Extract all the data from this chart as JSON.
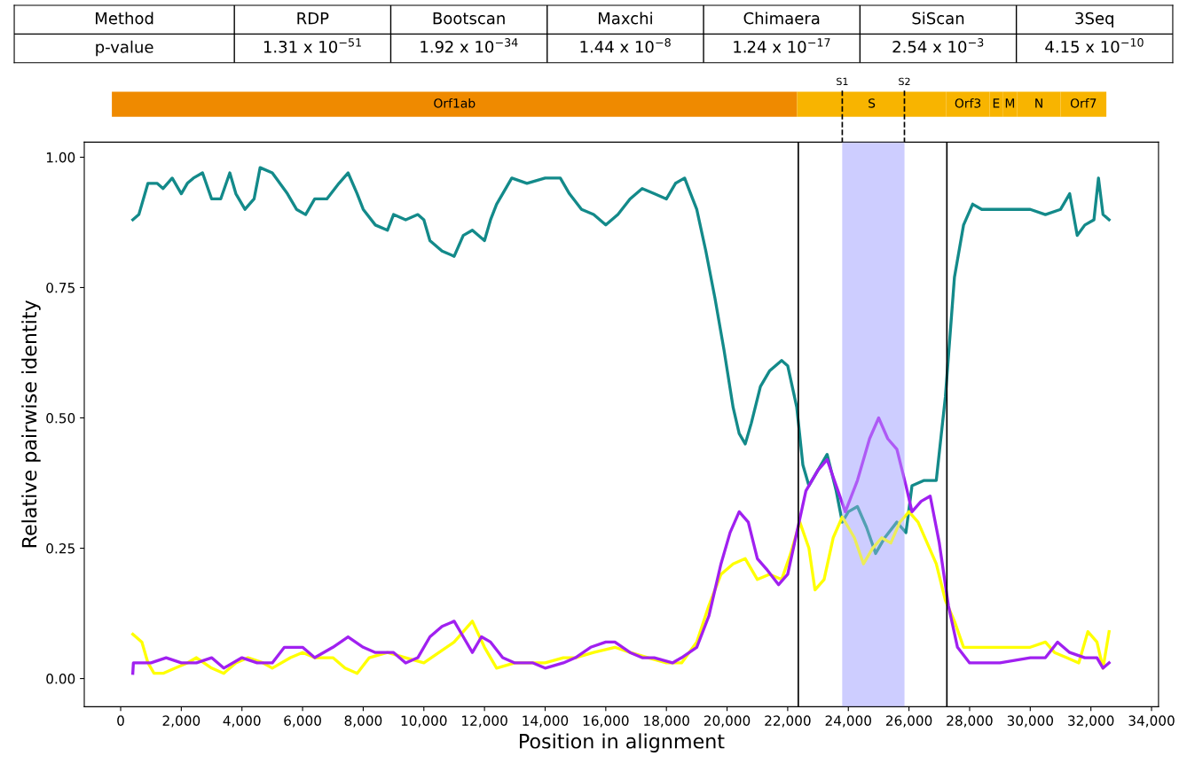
{
  "chart_data": [
    {
      "type": "other",
      "annotations": [
        "Method",
        "RDP",
        "Bootscan",
        "Maxchi",
        "Chimaera",
        "SiScan",
        "3Seq",
        "p-value",
        "1.31 x 10$^{−51}$",
        "1.92 x 10$^{−34}$",
        "1.44 x 10$^{−8}$",
        "1.24 x 10$^{−17}$",
        "2.54 x 10$^{−3}$",
        "4.15 x 10$^{−10}$"
      ]
    },
    {
      "type": "bar",
      "orientation": "horizontal",
      "categories": [
        null
      ],
      "xlim": [
        -1200,
        34230
      ],
      "tick_labels": false,
      "series": [
        {
          "name": "Orf1ab",
          "color": "#ef8a00",
          "base": [
            -290
          ],
          "values": [
            22600
          ]
        },
        {
          "name": "S",
          "color": "#f8b400",
          "base": [
            22310
          ],
          "values": [
            4920
          ]
        },
        {
          "name": "Orf3",
          "color": "#f8b400",
          "base": [
            27230
          ],
          "values": [
            1430
          ]
        },
        {
          "name": "E",
          "color": "#f8b400",
          "base": [
            28660
          ],
          "values": [
            430
          ]
        },
        {
          "name": "M",
          "color": "#f8b400",
          "base": [
            29090
          ],
          "values": [
            480
          ]
        },
        {
          "name": "N",
          "color": "#f8b400",
          "base": [
            29570
          ],
          "values": [
            1430
          ]
        },
        {
          "name": "Orf7",
          "color": "#f8b400",
          "base": [
            31000
          ],
          "values": [
            1510
          ]
        }
      ],
      "ref_lines": [
        {
          "axis": "x",
          "value": 23800,
          "label": "S1",
          "color": "#000000",
          "line_style": "dashed"
        },
        {
          "axis": "x",
          "value": 25850,
          "label": "S2",
          "color": "#000000",
          "line_style": "dashed"
        }
      ]
    },
    {
      "type": "line",
      "xlabel": "Position in alignment",
      "ylabel": "Relative pairwise identity",
      "xlim": [
        -1200,
        34230
      ],
      "ylim": [
        -0.054,
        1.029
      ],
      "xticks": [
        0,
        {
          "value": 2000,
          "label": "2,000"
        },
        {
          "value": 4000,
          "label": "4,000"
        },
        {
          "value": 6000,
          "label": "6,000"
        },
        {
          "value": 8000,
          "label": "8,000"
        },
        {
          "value": 10000,
          "label": "10,000"
        },
        {
          "value": 12000,
          "label": "12,000"
        },
        {
          "value": 14000,
          "label": "14,000"
        },
        {
          "value": 16000,
          "label": "16,000"
        },
        {
          "value": 18000,
          "label": "18,000"
        },
        {
          "value": 20000,
          "label": "20,000"
        },
        {
          "value": 22000,
          "label": "22,000"
        },
        {
          "value": 24000,
          "label": "24,000"
        },
        {
          "value": 26000,
          "label": "26,000"
        },
        {
          "value": 28000,
          "label": "28,000"
        },
        {
          "value": 30000,
          "label": "30,000"
        },
        {
          "value": 32000,
          "label": "32,000"
        },
        {
          "value": 34000,
          "label": "34,000"
        }
      ],
      "yticks": [
        {
          "value": 0,
          "label": "0.00"
        },
        {
          "value": 0.25,
          "label": "0.25"
        },
        {
          "value": 0.5,
          "label": "0.50"
        },
        {
          "value": 0.75,
          "label": "0.75"
        },
        {
          "value": 1,
          "label": "1.00"
        }
      ],
      "grid": false,
      "legend": false,
      "bands": [
        {
          "axis": "x",
          "from": 23800,
          "to": 25850,
          "color": "#c8c8ff"
        }
      ],
      "ref_lines": [
        {
          "axis": "x",
          "value": 22350,
          "color": "#000000",
          "line_style": "solid"
        },
        {
          "axis": "x",
          "value": 27250,
          "color": "#000000",
          "line_style": "solid"
        }
      ],
      "series": [
        {
          "color": "#138a8a",
          "x": [
            400,
            600,
            900,
            1200,
            1400,
            1700,
            2000,
            2200,
            2400,
            2700,
            3000,
            3300,
            3600,
            3800,
            4100,
            4400,
            4600,
            5000,
            5500,
            5800,
            6100,
            6400,
            6800,
            7200,
            7500,
            7800,
            8000,
            8400,
            8800,
            9000,
            9400,
            9800,
            10000,
            10200,
            10600,
            11000,
            11300,
            11600,
            12000,
            12200,
            12400,
            12900,
            13400,
            14000,
            14500,
            14800,
            15200,
            15600,
            16000,
            16400,
            16800,
            17200,
            17600,
            18000,
            18300,
            18600,
            18800,
            19000,
            19300,
            19600,
            19900,
            20200,
            20400,
            20600,
            20800,
            21100,
            21400,
            21800,
            22000,
            22300,
            22500,
            22700,
            23000,
            23300,
            23600,
            23800,
            24000,
            24300,
            24600,
            24900,
            25200,
            25600,
            25900,
            26100,
            26500,
            26900,
            27200,
            27500,
            27800,
            28100,
            28400,
            29000,
            30000,
            30500,
            31000,
            31300,
            31550,
            31800,
            32100,
            32250,
            32400,
            32600
          ],
          "values": [
            0.88,
            0.89,
            0.95,
            0.95,
            0.94,
            0.96,
            0.93,
            0.95,
            0.96,
            0.97,
            0.92,
            0.92,
            0.97,
            0.93,
            0.9,
            0.92,
            0.98,
            0.97,
            0.93,
            0.9,
            0.89,
            0.92,
            0.92,
            0.95,
            0.97,
            0.93,
            0.9,
            0.87,
            0.86,
            0.89,
            0.88,
            0.89,
            0.88,
            0.84,
            0.82,
            0.81,
            0.85,
            0.86,
            0.84,
            0.88,
            0.91,
            0.96,
            0.95,
            0.96,
            0.96,
            0.93,
            0.9,
            0.89,
            0.87,
            0.89,
            0.92,
            0.94,
            0.93,
            0.92,
            0.95,
            0.96,
            0.93,
            0.9,
            0.82,
            0.73,
            0.63,
            0.52,
            0.47,
            0.45,
            0.49,
            0.56,
            0.59,
            0.61,
            0.6,
            0.52,
            0.41,
            0.37,
            0.4,
            0.43,
            0.36,
            0.3,
            0.32,
            0.33,
            0.29,
            0.24,
            0.27,
            0.3,
            0.28,
            0.37,
            0.38,
            0.38,
            0.54,
            0.77,
            0.87,
            0.91,
            0.9,
            0.9,
            0.9,
            0.89,
            0.9,
            0.93,
            0.85,
            0.87,
            0.88,
            0.96,
            0.89,
            0.88
          ]
        },
        {
          "color": "#ffff00",
          "x": [
            400,
            700,
            900,
            1100,
            1400,
            1800,
            2200,
            2500,
            3000,
            3400,
            3800,
            4200,
            4700,
            5000,
            5600,
            6000,
            6400,
            7000,
            7400,
            7800,
            8200,
            8800,
            9400,
            10000,
            10500,
            11000,
            11600,
            12000,
            12400,
            13000,
            14000,
            14600,
            15000,
            15600,
            16300,
            16800,
            17400,
            18000,
            18500,
            19000,
            19400,
            19800,
            20200,
            20600,
            21000,
            21400,
            21800,
            22100,
            22400,
            22700,
            22900,
            23200,
            23500,
            23800,
            24200,
            24500,
            24800,
            25100,
            25400,
            25700,
            26000,
            26300,
            26600,
            26900,
            27200,
            27500,
            27800,
            28200,
            29000,
            30000,
            30500,
            30800,
            31200,
            31600,
            31900,
            32200,
            32400,
            32600
          ],
          "values": [
            0.085,
            0.07,
            0.03,
            0.01,
            0.01,
            0.02,
            0.03,
            0.04,
            0.02,
            0.01,
            0.03,
            0.04,
            0.03,
            0.02,
            0.04,
            0.05,
            0.04,
            0.04,
            0.02,
            0.01,
            0.04,
            0.05,
            0.04,
            0.03,
            0.05,
            0.07,
            0.11,
            0.06,
            0.02,
            0.03,
            0.03,
            0.04,
            0.04,
            0.05,
            0.06,
            0.05,
            0.04,
            0.03,
            0.03,
            0.07,
            0.14,
            0.2,
            0.22,
            0.23,
            0.19,
            0.2,
            0.19,
            0.24,
            0.3,
            0.25,
            0.17,
            0.19,
            0.27,
            0.31,
            0.27,
            0.22,
            0.25,
            0.27,
            0.26,
            0.3,
            0.32,
            0.3,
            0.26,
            0.22,
            0.15,
            0.11,
            0.06,
            0.06,
            0.06,
            0.06,
            0.07,
            0.05,
            0.04,
            0.03,
            0.09,
            0.07,
            0.02,
            0.09
          ]
        },
        {
          "color": "#a020f0",
          "x": [
            400,
            420,
            1000,
            1500,
            2000,
            2500,
            3000,
            3400,
            4000,
            4500,
            5000,
            5400,
            6000,
            6400,
            7000,
            7500,
            8000,
            8400,
            9000,
            9400,
            9800,
            10200,
            10600,
            11000,
            11300,
            11600,
            11900,
            12200,
            12600,
            13000,
            13600,
            14000,
            14600,
            15000,
            15500,
            16000,
            16300,
            16800,
            17200,
            17600,
            18200,
            18500,
            19000,
            19400,
            19800,
            20100,
            20400,
            20700,
            21000,
            21300,
            21700,
            22000,
            22300,
            22600,
            23000,
            23300,
            23600,
            23900,
            24300,
            24700,
            25000,
            25300,
            25600,
            25900,
            26100,
            26400,
            26700,
            27000,
            27300,
            27600,
            28000,
            29000,
            30000,
            30500,
            30900,
            31300,
            31800,
            32200,
            32400,
            32600
          ],
          "values": [
            0.01,
            0.03,
            0.03,
            0.04,
            0.03,
            0.03,
            0.04,
            0.02,
            0.04,
            0.03,
            0.03,
            0.06,
            0.06,
            0.04,
            0.06,
            0.08,
            0.06,
            0.05,
            0.05,
            0.03,
            0.04,
            0.08,
            0.1,
            0.11,
            0.08,
            0.05,
            0.08,
            0.07,
            0.04,
            0.03,
            0.03,
            0.02,
            0.03,
            0.04,
            0.06,
            0.07,
            0.07,
            0.05,
            0.04,
            0.04,
            0.03,
            0.04,
            0.06,
            0.12,
            0.22,
            0.28,
            0.32,
            0.3,
            0.23,
            0.21,
            0.18,
            0.2,
            0.28,
            0.36,
            0.4,
            0.42,
            0.37,
            0.32,
            0.38,
            0.46,
            0.5,
            0.46,
            0.44,
            0.37,
            0.32,
            0.34,
            0.35,
            0.26,
            0.14,
            0.06,
            0.03,
            0.03,
            0.04,
            0.04,
            0.07,
            0.05,
            0.04,
            0.04,
            0.02,
            0.03
          ]
        }
      ]
    }
  ]
}
